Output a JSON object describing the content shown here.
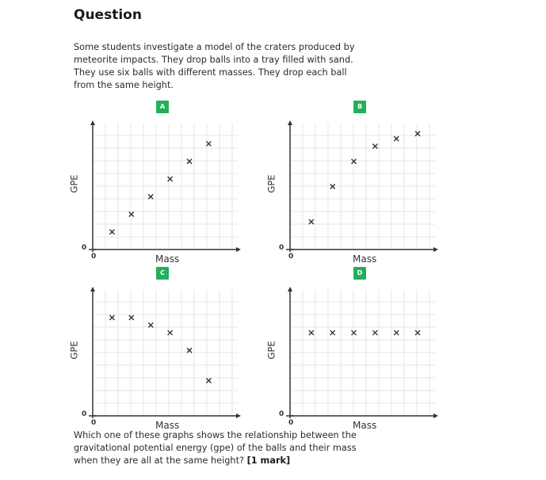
{
  "question": {
    "heading": "Question",
    "intro": "Some students investigate a model of the craters produced by meteorite impacts. They drop balls into a tray filled with sand. They use six balls with different masses. They drop each ball from the same height.",
    "prompt": "Which one of these graphs shows the relationship between the gravitational potential energy (gpe) of the balls and their mass when they are all at the same height?",
    "marks": "[1 mark]"
  },
  "colors": {
    "badge": "#22b05a",
    "grid": "#e6e6e6",
    "axis": "#333333",
    "marker": "#333333"
  },
  "chart_data": [
    {
      "type": "scatter",
      "title": "A",
      "xlabel": "Mass",
      "ylabel": "GPE",
      "origin_x": "0",
      "origin_y": "0",
      "grid": true,
      "xlim": [
        0,
        7.5
      ],
      "ylim": [
        0,
        5
      ],
      "x": [
        1,
        2,
        3,
        4,
        5,
        6
      ],
      "y": [
        0.7,
        1.4,
        2.1,
        2.8,
        3.5,
        4.2
      ]
    },
    {
      "type": "scatter",
      "title": "B",
      "xlabel": "Mass",
      "ylabel": "GPE",
      "origin_x": "0",
      "origin_y": "0",
      "grid": true,
      "xlim": [
        0,
        7.5
      ],
      "ylim": [
        0,
        5
      ],
      "x": [
        1.1,
        2.2,
        3.3,
        4.4,
        5.5,
        6.6
      ],
      "y": [
        1.1,
        2.5,
        3.5,
        4.1,
        4.4,
        4.6
      ]
    },
    {
      "type": "scatter",
      "title": "C",
      "xlabel": "Mass",
      "ylabel": "GPE",
      "origin_x": "0",
      "origin_y": "0",
      "grid": true,
      "xlim": [
        0,
        7.5
      ],
      "ylim": [
        0,
        5
      ],
      "x": [
        1,
        2,
        3,
        4,
        5,
        6
      ],
      "y": [
        3.9,
        3.9,
        3.6,
        3.3,
        2.6,
        1.4
      ]
    },
    {
      "type": "scatter",
      "title": "D",
      "xlabel": "Mass",
      "ylabel": "GPE",
      "origin_x": "0",
      "origin_y": "0",
      "grid": true,
      "xlim": [
        0,
        7.5
      ],
      "ylim": [
        0,
        5
      ],
      "x": [
        1.1,
        2.2,
        3.3,
        4.4,
        5.5,
        6.6
      ],
      "y": [
        3.3,
        3.3,
        3.3,
        3.3,
        3.3,
        3.3
      ]
    }
  ]
}
